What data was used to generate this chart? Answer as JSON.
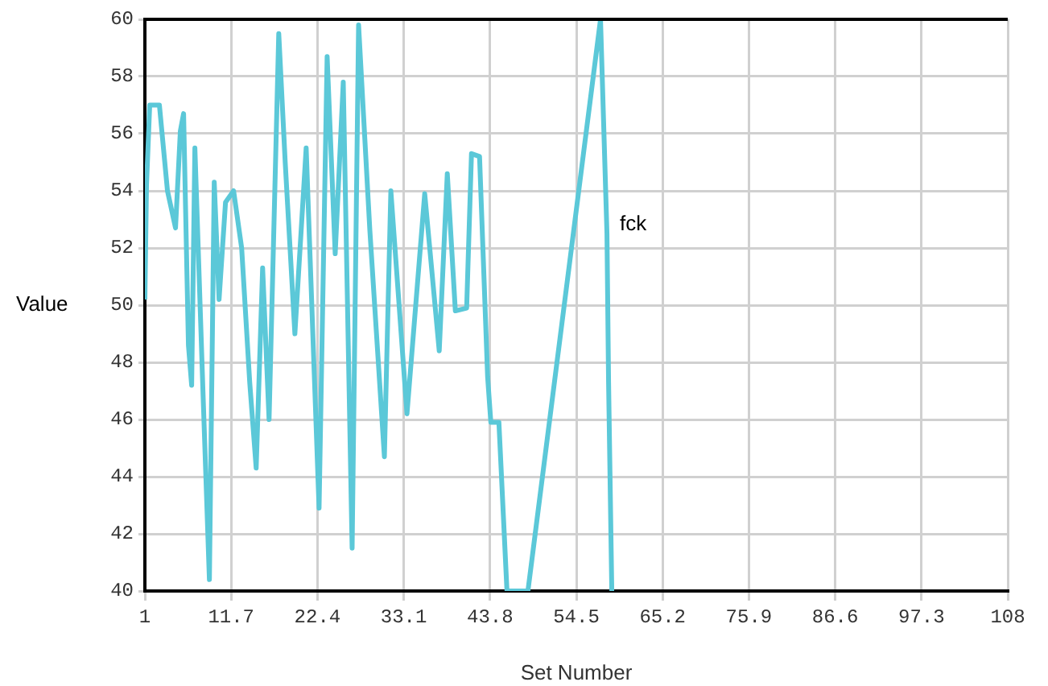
{
  "chart_data": {
    "type": "line",
    "xlabel": "Set Number",
    "ylabel": "Value",
    "xlim": [
      1,
      108
    ],
    "xticks": [
      1,
      11.7,
      22.4,
      33.1,
      43.8,
      54.5,
      65.2,
      75.9,
      86.6,
      97.3,
      108
    ],
    "ylim": [
      40,
      60
    ],
    "yticks": [
      40,
      42,
      44,
      46,
      48,
      50,
      52,
      54,
      56,
      58,
      60
    ],
    "grid": true,
    "legend": false,
    "marker": "none",
    "line_style": "solid",
    "series": [
      {
        "name": "fck",
        "color": "#5bc8d8",
        "x": [
          1,
          1.2,
          1.6,
          2.8,
          3.8,
          4.8,
          5.4,
          5.8,
          6.4,
          6.8,
          7.2,
          8.2,
          9.0,
          9.6,
          10.2,
          11.0,
          12.0,
          13.0,
          14.0,
          14.8,
          15.6,
          16.4,
          17.6,
          18.4,
          19.6,
          21.0,
          22.6,
          23.6,
          24.6,
          25.6,
          26.7,
          27.5,
          28.9,
          30.7,
          31.5,
          33.5,
          35.7,
          37.5,
          38.5,
          39.5,
          40.9,
          41.5,
          42.5,
          43.5,
          43.9,
          44.9,
          45.9,
          48.5,
          57.5,
          58.3,
          58.5,
          58.9
        ],
        "values": [
          50.2,
          54.2,
          57,
          57,
          54,
          52.7,
          56.1,
          56.7,
          48.6,
          47.2,
          55.5,
          47,
          40.4,
          54.3,
          50.2,
          53.6,
          54,
          52,
          47.3,
          44.3,
          51.3,
          46,
          59.5,
          55,
          49,
          55.5,
          42.9,
          58.7,
          51.8,
          57.8,
          41.5,
          59.8,
          52.6,
          44.7,
          54,
          46.2,
          53.9,
          48.4,
          54.6,
          49.8,
          49.9,
          55.3,
          55.2,
          47.5,
          45.9,
          45.9,
          40,
          40,
          60,
          52.5,
          47.3,
          40
        ]
      }
    ]
  }
}
